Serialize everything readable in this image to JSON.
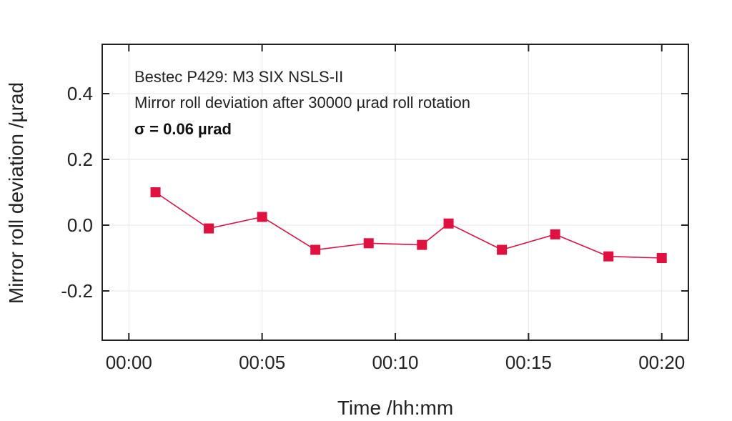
{
  "chart_data": {
    "type": "line",
    "x_format": "hh:mm",
    "xlabel": "Time /hh:mm",
    "ylabel": "Mirror roll deviation /µrad",
    "xlim": [
      "-00:01",
      "00:21"
    ],
    "ylim": [
      -0.35,
      0.55
    ],
    "x_ticks": [
      "00:00",
      "00:05",
      "00:10",
      "00:15",
      "00:20"
    ],
    "y_ticks": [
      0.4,
      0.2,
      0.0,
      -0.2
    ],
    "y_tick_labels": [
      "0.4",
      "0.2",
      "0.0",
      "-0.2"
    ],
    "grid": true,
    "annotations": [
      "Bestec P429: M3 SIX NSLS-II",
      "Mirror roll deviation after 30000 µrad roll rotation",
      "σ = 0.06 µrad"
    ],
    "series": [
      {
        "color": "#e0103f",
        "marker": "square",
        "x": [
          "00:01",
          "00:03",
          "00:05",
          "00:07",
          "00:09",
          "00:11",
          "00:12",
          "00:14",
          "00:16",
          "00:18",
          "00:20"
        ],
        "y": [
          0.1,
          -0.01,
          0.025,
          -0.075,
          -0.055,
          -0.06,
          0.005,
          -0.075,
          -0.028,
          -0.095,
          -0.1
        ]
      }
    ]
  }
}
